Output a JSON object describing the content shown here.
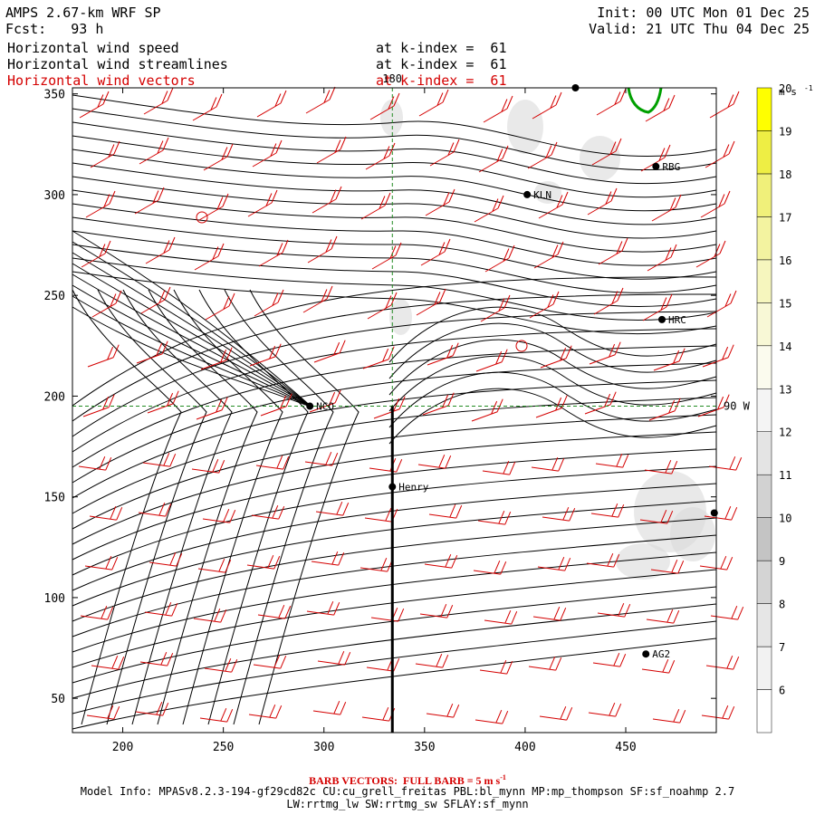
{
  "header": {
    "model": "AMPS 2.67-km WRF SP",
    "forecast": "Fcst:   93 h",
    "init": "Init: 00 UTC Mon 01 Dec 25",
    "valid": "Valid: 21 UTC Thu 04 Dec 25",
    "fields": [
      {
        "name": "Horizontal wind speed",
        "level": "at k-index =  61",
        "color": "#000000"
      },
      {
        "name": "Horizontal wind streamlines",
        "level": "at k-index =  61",
        "color": "#000000"
      },
      {
        "name": "Horizontal wind vectors",
        "level": "at k-index =  61",
        "color": "#d40000"
      }
    ]
  },
  "footer": {
    "barb_note": "BARB VECTORS:  FULL BARB = 5 m s",
    "barb_exp": "-1",
    "model_info": "Model Info: MPASv8.2.3-194-gf29cd82c CU:cu_grell_freitas PBL:bl_mynn MP:mp_thompson SF:sf_noahmp 2.7",
    "physics": "LW:rrtmg_lw SW:rrtmg_sw SFLAY:sf_mynn"
  },
  "chart_data": {
    "type": "heatmap",
    "x_ticks": [
      200,
      250,
      300,
      350,
      400,
      450
    ],
    "y_ticks": [
      50,
      100,
      150,
      200,
      250,
      300,
      350
    ],
    "xlim": [
      175,
      495
    ],
    "ylim": [
      33,
      353
    ],
    "meridian_label": "180",
    "meridian_x": 334,
    "parallel_label": "90 W",
    "parallel_y": 195,
    "section_line": {
      "x": 334,
      "y": [
        33,
        195
      ]
    },
    "stations": [
      {
        "name": "NCO",
        "x": 293,
        "y": 195
      },
      {
        "name": "Henry",
        "x": 334,
        "y": 155
      },
      {
        "name": "KLN",
        "x": 401,
        "y": 300
      },
      {
        "name": "RBG",
        "x": 465,
        "y": 314
      },
      {
        "name": "HRC",
        "x": 468,
        "y": 238
      },
      {
        "name": "AG2",
        "x": 460,
        "y": 72
      },
      {
        "name": "",
        "x": 494,
        "y": 142
      },
      {
        "name": "",
        "x": 425,
        "y": 353
      }
    ],
    "colorbar": {
      "unit": "m s",
      "unit_exp": "-1",
      "ticks": [
        6,
        7,
        8,
        9,
        10,
        11,
        12,
        13,
        14,
        15,
        16,
        17,
        18,
        19,
        20
      ],
      "colors": [
        "#ffffff",
        "#f2f2f2",
        "#e6e6e6",
        "#d4d4d4",
        "#c4c4c4",
        "#d2d2d2",
        "#e4e4e4",
        "#f4f4f4",
        "#fbfbee",
        "#f8f8d6",
        "#f6f6be",
        "#f3f3a0",
        "#f0f07a",
        "#eeee44",
        "#ffff00"
      ]
    },
    "streamline_color": "#000000",
    "vector_color": "#d40000",
    "contour_color": "#00a000"
  }
}
